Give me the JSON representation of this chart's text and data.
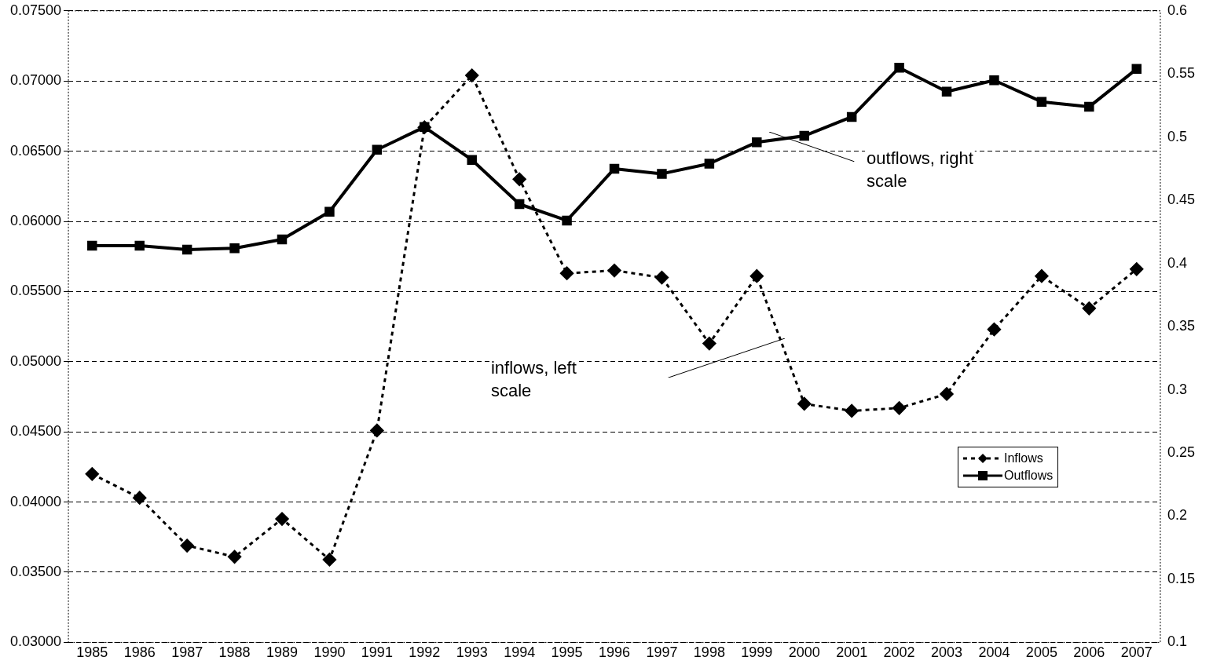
{
  "chart_data": {
    "type": "line",
    "categories": [
      "1985",
      "1986",
      "1987",
      "1988",
      "1989",
      "1990",
      "1991",
      "1992",
      "1993",
      "1994",
      "1995",
      "1996",
      "1997",
      "1998",
      "1999",
      "2000",
      "2001",
      "2002",
      "2003",
      "2004",
      "2005",
      "2006",
      "2007"
    ],
    "series": [
      {
        "name": "Inflows",
        "color": "#000000",
        "marker": "diamond",
        "line_style": "dashed",
        "values": [
          0.042,
          0.0403,
          0.0369,
          0.0361,
          0.0388,
          0.0359,
          0.0451,
          0.0667,
          0.0704,
          0.063,
          0.0563,
          0.0565,
          0.056,
          0.0513,
          0.0561,
          0.047,
          0.0465,
          0.0467,
          0.0477,
          0.0523,
          0.0561,
          0.0538,
          0.0566
        ]
      },
      {
        "name": "Outflows",
        "color": "#000000",
        "marker": "square",
        "line_style": "solid",
        "axis": "y2",
        "values": [
          0.414,
          0.414,
          0.411,
          0.412,
          0.419,
          0.441,
          0.49,
          0.508,
          0.482,
          0.447,
          0.434,
          0.475,
          0.471,
          0.479,
          0.496,
          0.501,
          0.516,
          0.555,
          0.536,
          0.545,
          0.528,
          0.524,
          0.554
        ]
      }
    ],
    "ylim": [
      0.03,
      0.075
    ],
    "yticks": [
      {
        "value": 0.03,
        "label": "0.03000"
      },
      {
        "value": 0.035,
        "label": "0.03500"
      },
      {
        "value": 0.04,
        "label": "0.04000"
      },
      {
        "value": 0.045,
        "label": "0.04500"
      },
      {
        "value": 0.05,
        "label": "0.05000"
      },
      {
        "value": 0.055,
        "label": "0.05500"
      },
      {
        "value": 0.06,
        "label": "0.06000"
      },
      {
        "value": 0.065,
        "label": "0.06500"
      },
      {
        "value": 0.07,
        "label": "0.07000"
      },
      {
        "value": 0.075,
        "label": "0.07500"
      }
    ],
    "y2lim": [
      0.1,
      0.6
    ],
    "y2ticks": [
      0.1,
      0.15,
      0.2,
      0.25,
      0.3,
      0.35,
      0.4,
      0.45,
      0.5,
      0.55,
      0.6
    ],
    "annotations": [
      "outflows, right scale",
      "inflows, left scale"
    ],
    "grid": "y",
    "legend": "bottom right"
  }
}
